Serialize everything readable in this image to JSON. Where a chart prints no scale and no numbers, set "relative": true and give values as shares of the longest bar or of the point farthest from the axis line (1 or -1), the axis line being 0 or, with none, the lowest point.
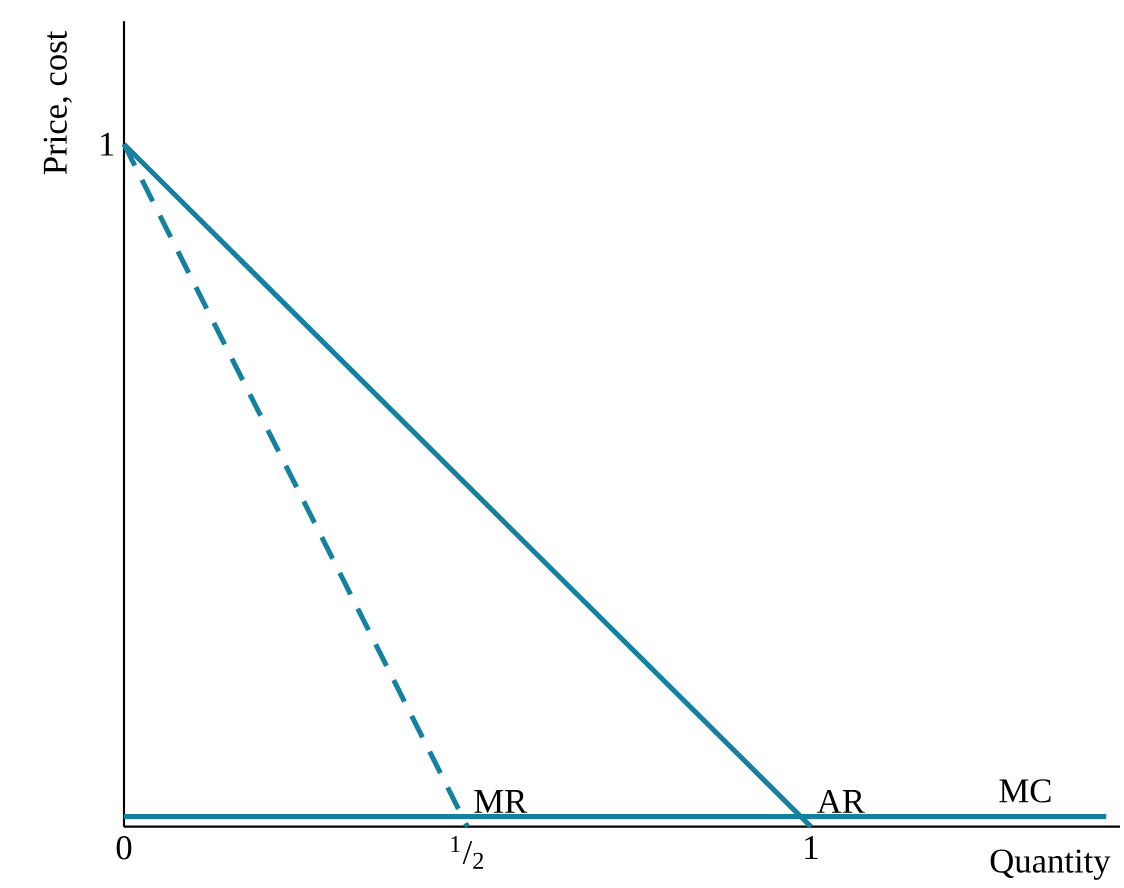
{
  "chart_data": {
    "type": "line",
    "ylabel": "Price, cost",
    "xlabel": "Quantity",
    "xlim": [
      0,
      1.45
    ],
    "relative": true,
    "annotations": [
      {
        "text": "1",
        "x": 0,
        "y": 1
      }
    ],
    "xticks": [
      0,
      {
        "value": 0.5,
        "label": "$^{1}$/$_{2}$"
      },
      1
    ],
    "marker": "none",
    "series": [
      {
        "name": "AR",
        "color": "#1581a1",
        "x": [
          0,
          1
        ],
        "values": [
          1,
          0
        ],
        "line_style": "solid"
      },
      {
        "name": "MR",
        "color": "#1581a1",
        "x": [
          0,
          0.5
        ],
        "values": [
          1,
          0
        ],
        "line_style": "dashed"
      },
      {
        "name": "MC",
        "color": "#1581a1",
        "x": [
          0,
          1.43
        ],
        "values": [
          0.015,
          0.015
        ],
        "line_style": "solid"
      }
    ]
  }
}
